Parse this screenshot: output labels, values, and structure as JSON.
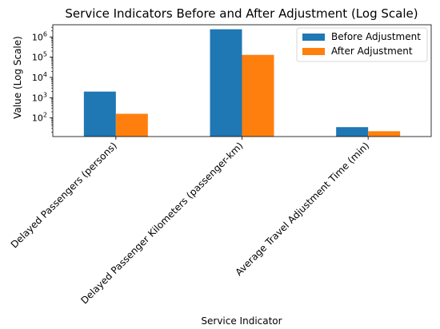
{
  "chart_data": {
    "type": "bar",
    "title": "Service Indicators Before and After Adjustment (Log Scale)",
    "xlabel": "Service Indicator",
    "ylabel": "Value (Log Scale)",
    "yscale": "log",
    "ylim": [
      12,
      4000000
    ],
    "categories": [
      "Delayed Passengers (persons)",
      "Delayed Passenger Kilometers (passenger-km)",
      "Average Travel Adjustment Time (min)"
    ],
    "series": [
      {
        "name": "Before Adjustment",
        "color": "#1f77b4",
        "values": [
          2000,
          2400000,
          35
        ]
      },
      {
        "name": "After Adjustment",
        "color": "#ff7f0e",
        "values": [
          160,
          130000,
          22
        ]
      }
    ],
    "yticks": [
      {
        "value": 100,
        "base": "10",
        "exp": "2"
      },
      {
        "value": 1000,
        "base": "10",
        "exp": "3"
      },
      {
        "value": 10000,
        "base": "10",
        "exp": "4"
      },
      {
        "value": 100000,
        "base": "10",
        "exp": "5"
      },
      {
        "value": 1000000,
        "base": "10",
        "exp": "6"
      }
    ],
    "legend": "top-right",
    "grid": false
  }
}
